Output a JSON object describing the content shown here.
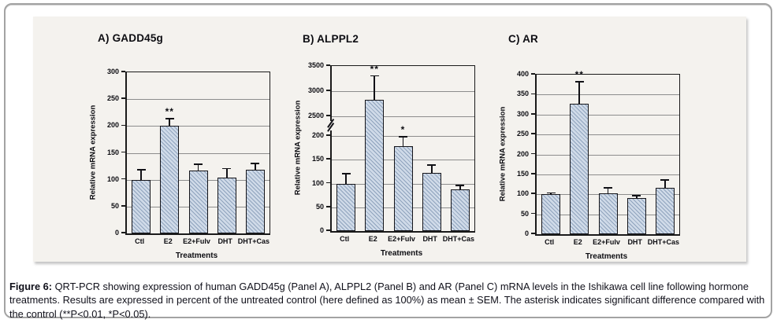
{
  "figure": {
    "caption_label": "Figure 6:",
    "caption_text": " QRT-PCR showing expression of human GADD45g (Panel A), ALPPL2 (Panel B) and AR (Panel C) mRNA levels in the Ishikawa cell line following hormone treatments. Results are expressed in percent of the untreated control (here defined as 100%) as mean ± SEM. The asterisk indicates significant difference compared with the control (**P<0.01, *P<0.05)."
  },
  "colors": {
    "panel_bg": "#f4f2ee",
    "bar_fill": "#cfdae8",
    "bar_stripe": "#8fa3bd",
    "bar_border": "#15151a",
    "gridline": "#8c8c8c",
    "axis": "#1a1a1a",
    "text": "#10101a",
    "page_border": "#a3a3a3"
  },
  "chart_data": [
    {
      "type": "bar",
      "title": "A) GADD45g",
      "categories": [
        "Ctl",
        "E2",
        "E2+Fulv",
        "DHT",
        "DHT+Cas"
      ],
      "values": [
        100,
        200,
        117,
        104,
        119
      ],
      "errors": [
        20,
        15,
        13,
        18,
        12
      ],
      "significance": [
        "",
        "**",
        "",
        "",
        ""
      ],
      "xlabel": "Treatments",
      "ylabel": "Relative mRNA expression",
      "ylim": [
        0,
        300
      ],
      "yticks": [
        0,
        50,
        100,
        150,
        200,
        250,
        300
      ],
      "grid": true,
      "axis_break": null,
      "axis_segments": [
        {
          "from": 0,
          "to": 300,
          "frac_bottom": 1.0,
          "frac_top": 0.0
        }
      ]
    },
    {
      "type": "bar",
      "title": "B) ALPPL2",
      "categories": [
        "Ctl",
        "E2",
        "E2+Fulv",
        "DHT",
        "DHT+Cas"
      ],
      "values": [
        100,
        2830,
        178,
        122,
        87
      ],
      "errors": [
        22,
        490,
        27,
        18,
        10
      ],
      "significance": [
        "",
        "**",
        "*",
        "",
        ""
      ],
      "xlabel": "Treatments",
      "ylabel": "Relative mRNA expression",
      "ylim": [
        0,
        3500
      ],
      "yticks": [
        0,
        50,
        100,
        150,
        200,
        2500,
        3000,
        3500
      ],
      "grid": true,
      "axis_break": [
        200,
        2500
      ],
      "axis_segments": [
        {
          "from": 0,
          "to": 200,
          "frac_bottom": 1.0,
          "frac_top": 0.424
        },
        {
          "from": 2500,
          "to": 3500,
          "frac_bottom": 0.305,
          "frac_top": 0.0
        }
      ]
    },
    {
      "type": "bar",
      "title": "C) AR",
      "categories": [
        "Ctl",
        "E2",
        "E2+Fulv",
        "DHT",
        "DHT+Cas"
      ],
      "values": [
        100,
        327,
        103,
        91,
        117
      ],
      "errors": [
        5,
        57,
        15,
        7,
        20
      ],
      "significance": [
        "",
        "**",
        "",
        "",
        ""
      ],
      "xlabel": "Treatments",
      "ylabel": "Relative mRNA expression",
      "ylim": [
        0,
        400
      ],
      "yticks": [
        0,
        50,
        100,
        150,
        200,
        250,
        300,
        350,
        400
      ],
      "grid": true,
      "axis_break": null,
      "axis_segments": [
        {
          "from": 0,
          "to": 400,
          "frac_bottom": 1.0,
          "frac_top": 0.0
        }
      ]
    }
  ]
}
